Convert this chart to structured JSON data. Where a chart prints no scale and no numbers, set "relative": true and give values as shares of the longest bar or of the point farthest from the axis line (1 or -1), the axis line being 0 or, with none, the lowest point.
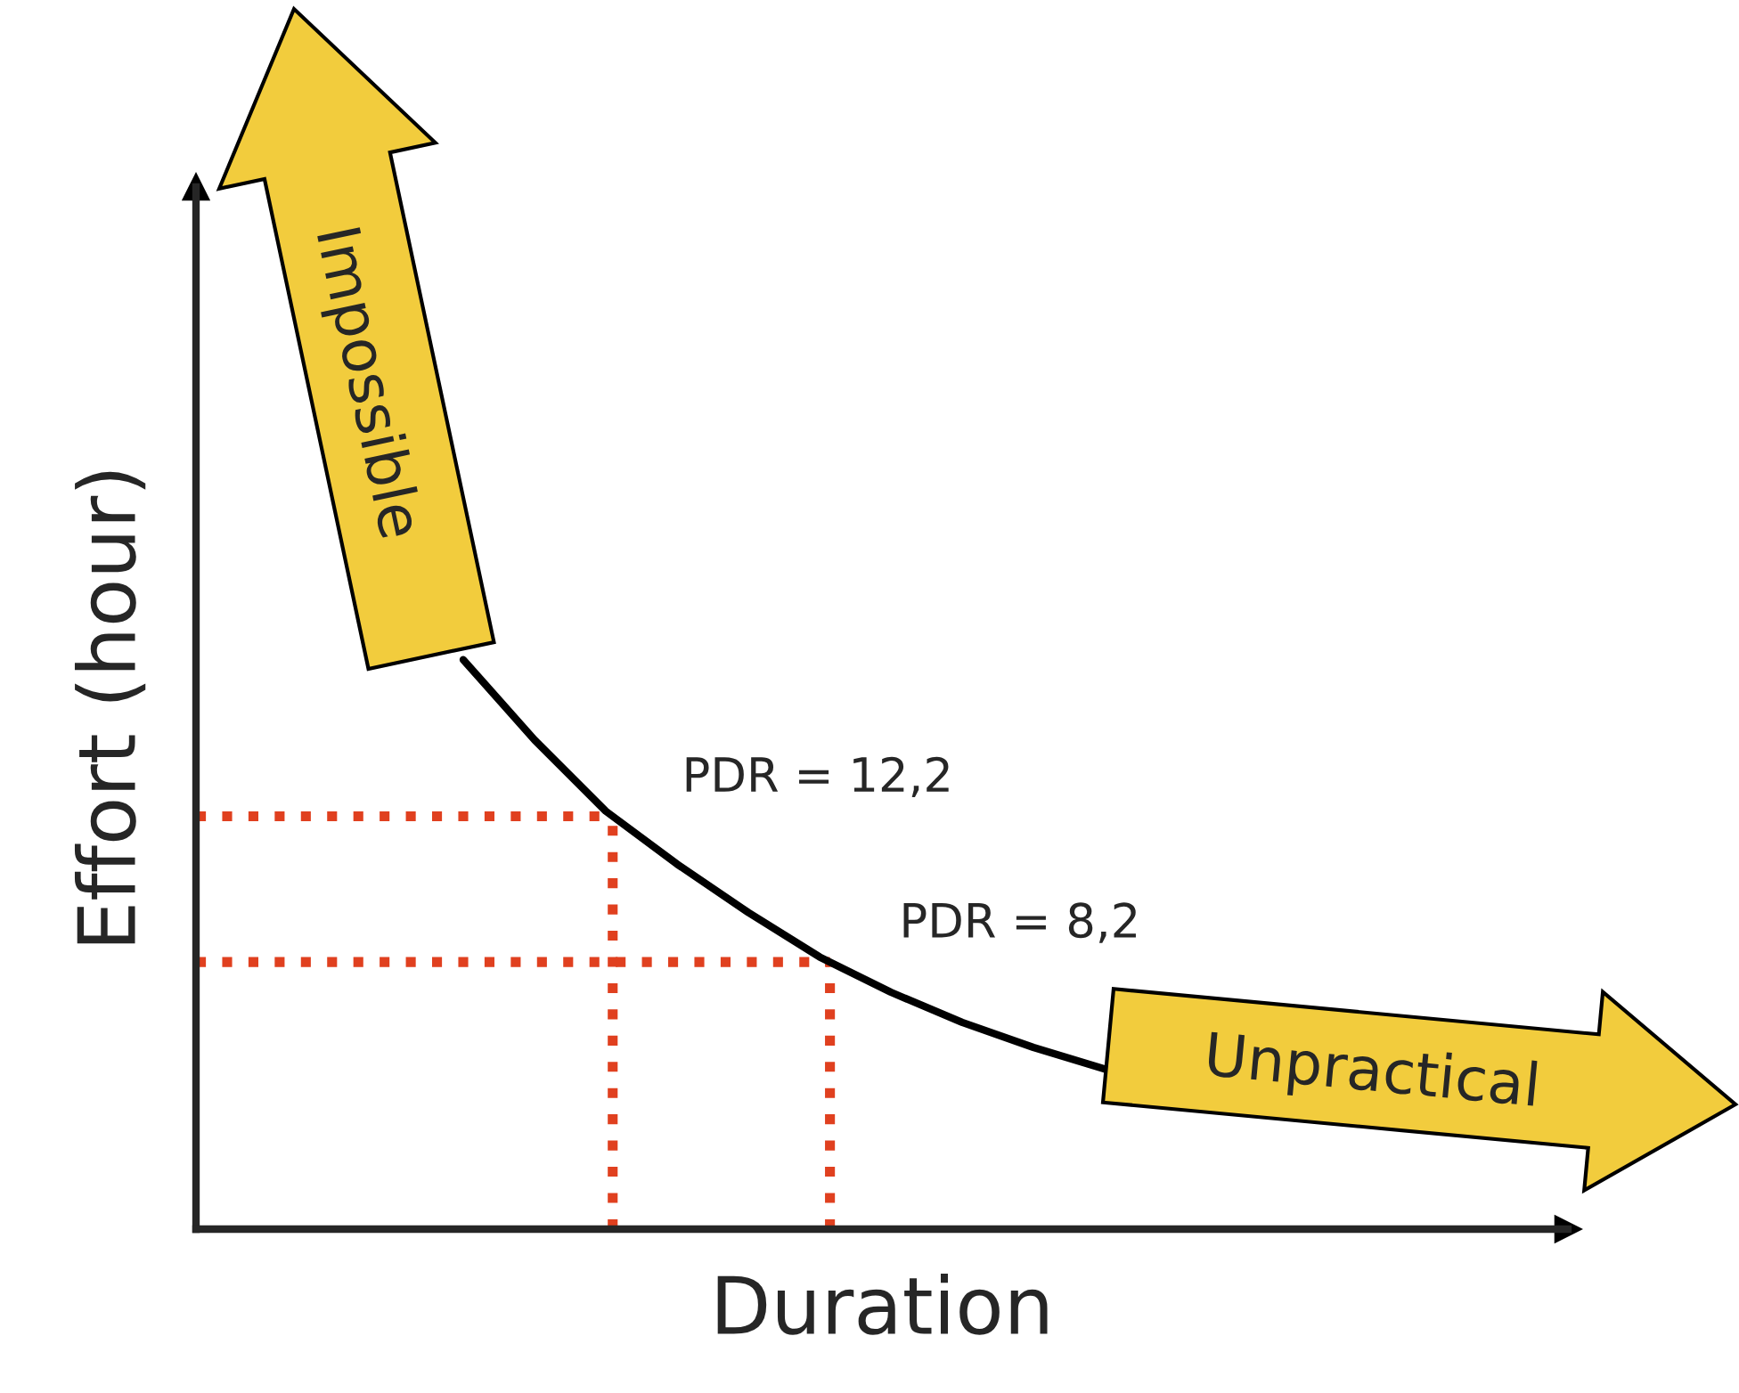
{
  "chart_data": {
    "type": "line",
    "relative": true,
    "xlabel": "Duration",
    "ylabel": "Effort (hour)",
    "categories": [
      null,
      null,
      null,
      null,
      null,
      null,
      null,
      null,
      null,
      null
    ],
    "series": [
      {
        "color": "#000000",
        "values": [
          1,
          0.859,
          0.734,
          0.641,
          0.556,
          0.478,
          0.416,
          0.363,
          0.319,
          0.281
        ]
      }
    ],
    "ref_lines": [
      {
        "axis": "y",
        "value": 0.725,
        "color": "#e0401f",
        "line_style": "dotted"
      },
      {
        "axis": "y",
        "value": 0.469,
        "color": "#e0401f",
        "line_style": "dotted"
      }
    ],
    "annotations": [
      "Impossible",
      "Unpractical",
      "PDR = 12,2",
      "PDR = 8,2"
    ],
    "marker": "none",
    "line_style": "solid"
  }
}
